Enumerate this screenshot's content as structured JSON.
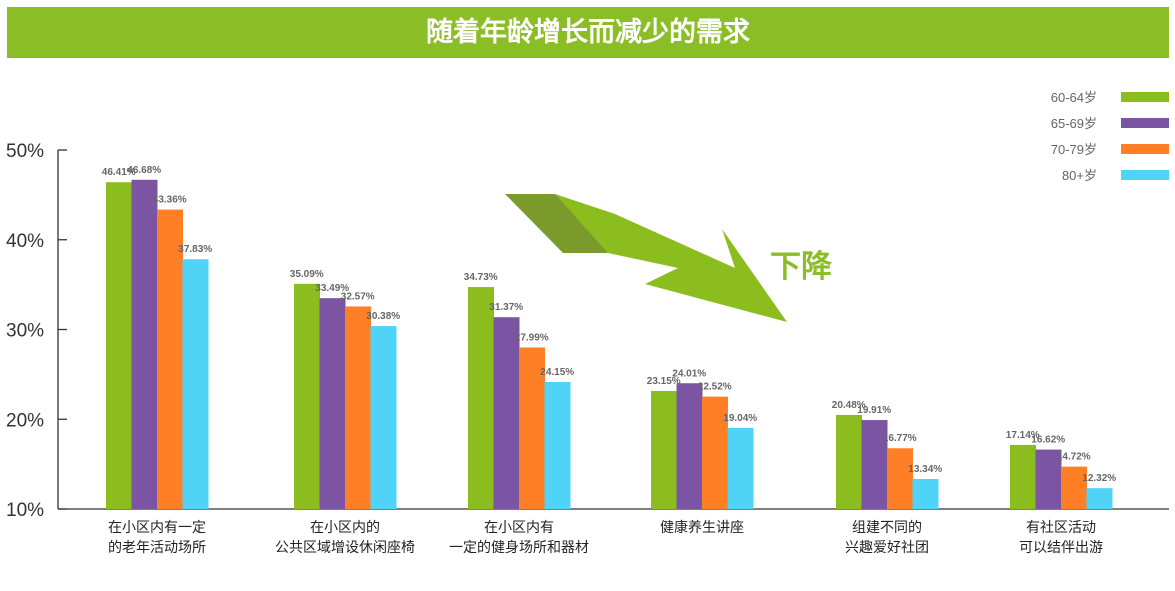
{
  "header": {
    "title": "随着年龄增长而减少的需求"
  },
  "chart_data": {
    "type": "bar",
    "categories": [
      [
        "在小区内有一定",
        "的老年活动场所"
      ],
      [
        "在小区内的",
        "公共区域增设休闲座椅"
      ],
      [
        "在小区内有",
        "一定的健身场所和器材"
      ],
      [
        "健康养生讲座"
      ],
      [
        "组建不同的",
        "兴趣爱好社团"
      ],
      [
        "有社区活动",
        "可以结伴出游"
      ]
    ],
    "series": [
      {
        "name": "60-64岁",
        "color": "#8bbd1f",
        "values": [
          46.41,
          35.09,
          34.73,
          23.15,
          20.48,
          17.14
        ]
      },
      {
        "name": "65-69岁",
        "color": "#7b54a3",
        "values": [
          46.68,
          33.49,
          31.37,
          24.01,
          19.91,
          16.62
        ]
      },
      {
        "name": "70-79岁",
        "color": "#ff7f27",
        "values": [
          43.36,
          32.57,
          27.99,
          22.52,
          16.77,
          14.72
        ]
      },
      {
        "name": "80+岁",
        "color": "#4fd3f7",
        "values": [
          37.83,
          30.38,
          24.15,
          19.04,
          13.34,
          12.32
        ]
      }
    ],
    "yticks": [
      "50%",
      "40%",
      "30%",
      "20%",
      "10%"
    ],
    "ylim": [
      10,
      50
    ],
    "legend": "top-right",
    "annotation": "下降"
  }
}
